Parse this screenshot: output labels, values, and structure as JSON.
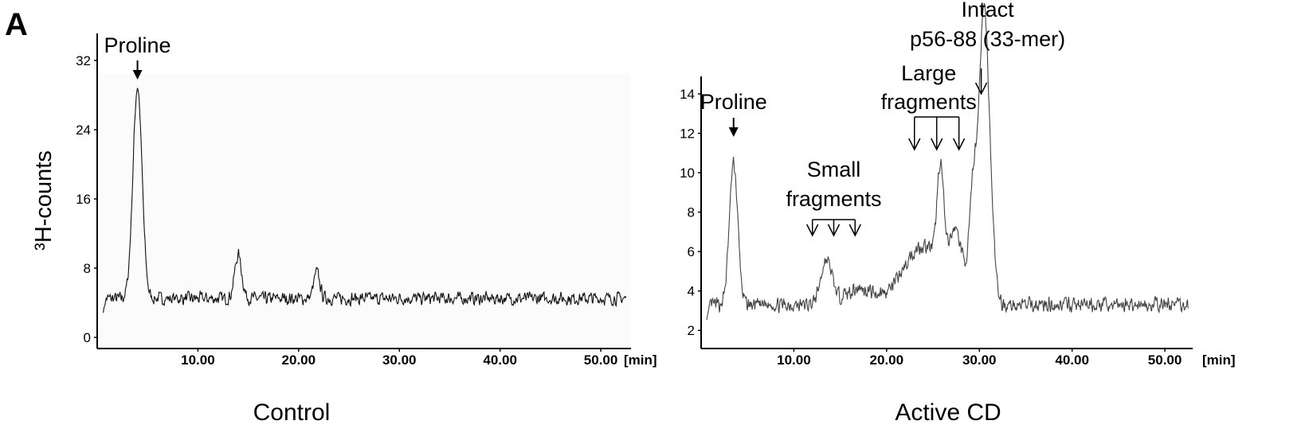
{
  "figure": {
    "panel_letter": "A"
  },
  "chart_data": [
    {
      "type": "line",
      "caption": "Control",
      "ylabel": "³H-counts",
      "x_unit": "[min]",
      "xlim": [
        0,
        53
      ],
      "ylim": [
        0,
        33
      ],
      "x_ticks": [
        10,
        20,
        30,
        40,
        50
      ],
      "x_tick_labels": [
        "10.00",
        "20.00",
        "30.00",
        "40.00",
        "50.00"
      ],
      "y_ticks": [
        0,
        8,
        16,
        24,
        32
      ],
      "y_tick_labels": [
        "0",
        "8",
        "16",
        "24",
        "32"
      ],
      "baseline": 4.5,
      "noise": 0.9,
      "noise_seed": 7,
      "peaks": [
        {
          "x": 4.0,
          "height": 24.5,
          "width": 0.45
        },
        {
          "x": 14.0,
          "height": 5.0,
          "width": 0.35
        },
        {
          "x": 21.8,
          "height": 3.0,
          "width": 0.3
        }
      ],
      "annotations": [
        {
          "label": "Proline",
          "x": 4.0,
          "arrow": "filled"
        }
      ]
    },
    {
      "type": "line",
      "caption": "Active CD",
      "ylabel": "",
      "x_unit": "[min]",
      "xlim": [
        0,
        53
      ],
      "ylim": [
        0,
        15
      ],
      "x_ticks": [
        10,
        20,
        30,
        40,
        50
      ],
      "x_tick_labels": [
        "10.00",
        "20.00",
        "30.00",
        "40.00",
        "50.00"
      ],
      "y_ticks": [
        2,
        4,
        6,
        8,
        10,
        12,
        14
      ],
      "y_tick_labels": [
        "2",
        "4",
        "6",
        "8",
        "10",
        "12",
        "14"
      ],
      "baseline": 3.3,
      "noise": 0.45,
      "noise_seed": 13,
      "peaks": [
        {
          "x": 3.5,
          "height": 7.2,
          "width": 0.45
        },
        {
          "x": 13.5,
          "height": 2.2,
          "width": 0.6
        },
        {
          "x": 17.0,
          "height": 0.8,
          "width": 1.6
        },
        {
          "x": 24.0,
          "height": 3.0,
          "width": 2.2
        },
        {
          "x": 25.8,
          "height": 5.0,
          "width": 0.35
        },
        {
          "x": 27.5,
          "height": 3.0,
          "width": 0.7
        },
        {
          "x": 29.4,
          "height": 6.0,
          "width": 0.45
        },
        {
          "x": 30.4,
          "height": 11.5,
          "width": 0.45
        },
        {
          "x": 31.0,
          "height": 6.0,
          "width": 0.5
        }
      ],
      "annotations": [
        {
          "label": "Proline",
          "x": 3.5,
          "arrow": "filled"
        },
        {
          "label_lines": [
            "Small",
            "fragments"
          ],
          "arrows_x": [
            12.0,
            14.3,
            16.6
          ],
          "arrow": "open"
        },
        {
          "label_lines": [
            "Large",
            "fragments"
          ],
          "arrows_x": [
            23.0,
            25.4,
            27.8
          ],
          "arrow": "open"
        },
        {
          "label_lines": [
            "Intact",
            "p56-88 (33-mer)"
          ],
          "arrows_x": [
            30.2
          ],
          "arrow": "open"
        }
      ]
    }
  ]
}
